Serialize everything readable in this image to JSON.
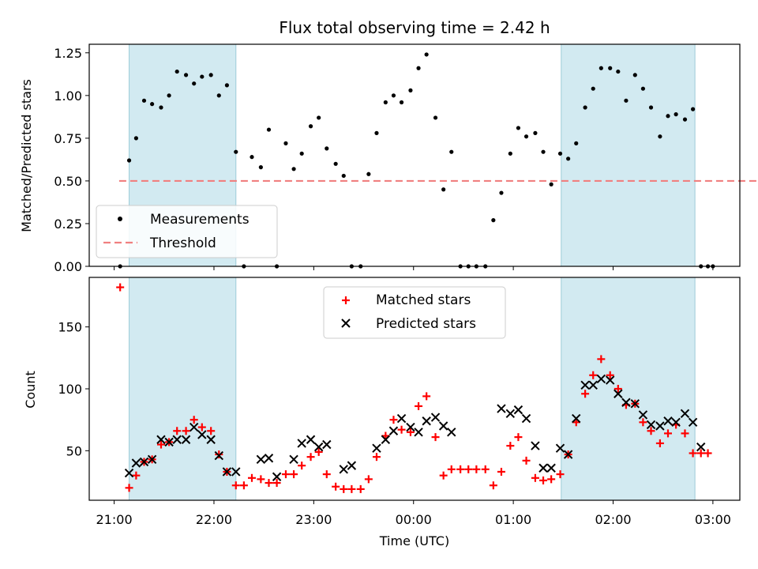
{
  "chart_data": [
    {
      "type": "scatter",
      "title": "Flux total observing time = 2.42 h",
      "xlabel": "",
      "ylabel": "Matched/Predicted stars",
      "ylim": [
        0,
        1.3
      ],
      "yticks": [
        "0.00",
        "0.25",
        "0.50",
        "0.75",
        "1.00",
        "1.25"
      ],
      "legend_position": "lower-left",
      "shaded_intervals_hours": [
        [
          21.15,
          22.22
        ],
        [
          25.48,
          26.82
        ]
      ],
      "shade_color": "#add8e6",
      "threshold": {
        "name": "Threshold",
        "value": 0.5,
        "x_range_hours": [
          21.05,
          29.0
        ],
        "color": "#f08080"
      },
      "series": [
        {
          "name": "Measurements",
          "color": "#000000",
          "x_hours": [
            21.06,
            21.15,
            21.22,
            21.3,
            21.38,
            21.47,
            21.55,
            21.63,
            21.72,
            21.8,
            21.88,
            21.97,
            22.05,
            22.13,
            22.22,
            22.3,
            22.38,
            22.47,
            22.55,
            22.63,
            22.72,
            22.8,
            22.88,
            22.97,
            23.05,
            23.13,
            23.22,
            23.3,
            23.38,
            23.47,
            23.55,
            23.63,
            23.72,
            23.8,
            23.88,
            23.97,
            24.05,
            24.13,
            24.22,
            24.3,
            24.38,
            24.47,
            24.55,
            24.63,
            24.72,
            24.8,
            24.88,
            24.97,
            25.05,
            25.13,
            25.22,
            25.3,
            25.38,
            25.47,
            25.55,
            25.63,
            25.72,
            25.8,
            25.88,
            25.97,
            26.05,
            26.13,
            26.22,
            26.3,
            26.38,
            26.47,
            26.55,
            26.63,
            26.72,
            26.8,
            26.88,
            26.95,
            27.0
          ],
          "y": [
            0,
            0.62,
            0.75,
            0.97,
            0.95,
            0.93,
            1.0,
            1.14,
            1.12,
            1.07,
            1.11,
            1.12,
            1.0,
            1.06,
            0.67,
            0,
            0.64,
            0.58,
            0.8,
            0,
            0.72,
            0.57,
            0.66,
            0.82,
            0.87,
            0.69,
            0.6,
            0.53,
            0,
            0,
            0.54,
            0.78,
            0.96,
            1.0,
            0.96,
            1.03,
            1.16,
            1.24,
            0.87,
            0.45,
            0.67,
            0,
            0,
            0,
            0,
            0.27,
            0.43,
            0.66,
            0.81,
            0.76,
            0.78,
            0.67,
            0.48,
            0.66,
            0.63,
            0.72,
            0.93,
            1.04,
            1.16,
            1.16,
            1.14,
            0.97,
            1.12,
            1.04,
            0.93,
            0.76,
            0.88,
            0.89,
            0.86,
            0.92,
            0,
            0,
            0
          ]
        }
      ]
    },
    {
      "type": "scatter",
      "title": "",
      "xlabel": "Time (UTC)",
      "ylabel": "Count",
      "ylim": [
        10,
        190
      ],
      "yticks": [
        "50",
        "100",
        "150"
      ],
      "xticks": [
        "21:00",
        "22:00",
        "23:00",
        "00:00",
        "01:00",
        "02:00",
        "03:00"
      ],
      "xtick_hours": [
        21,
        22,
        23,
        24,
        25,
        26,
        27
      ],
      "xlim_hours": [
        20.75,
        27.27
      ],
      "legend_position": "upper-center",
      "shaded_intervals_hours": [
        [
          21.15,
          22.22
        ],
        [
          25.48,
          26.82
        ]
      ],
      "shade_color": "#add8e6",
      "series": [
        {
          "name": "Matched stars",
          "marker": "plus",
          "color": "#ff0000",
          "x_hours": [
            21.06,
            21.15,
            21.22,
            21.3,
            21.38,
            21.47,
            21.55,
            21.63,
            21.72,
            21.8,
            21.88,
            21.97,
            22.05,
            22.13,
            22.22,
            22.3,
            22.38,
            22.47,
            22.55,
            22.63,
            22.72,
            22.8,
            22.88,
            22.97,
            23.05,
            23.13,
            23.22,
            23.3,
            23.38,
            23.47,
            23.55,
            23.63,
            23.72,
            23.8,
            23.88,
            23.97,
            24.05,
            24.13,
            24.22,
            24.3,
            24.38,
            24.47,
            24.55,
            24.63,
            24.72,
            24.8,
            24.88,
            24.97,
            25.05,
            25.13,
            25.22,
            25.3,
            25.38,
            25.47,
            25.55,
            25.63,
            25.72,
            25.8,
            25.88,
            25.97,
            26.05,
            26.13,
            26.22,
            26.3,
            26.38,
            26.47,
            26.55,
            26.63,
            26.72,
            26.8,
            26.88,
            26.95
          ],
          "y": [
            182,
            20,
            30,
            41,
            43,
            55,
            57,
            66,
            66,
            75,
            69,
            66,
            47,
            33,
            22,
            22,
            28,
            27,
            24,
            24,
            31,
            31,
            38,
            45,
            49,
            31,
            21,
            19,
            19,
            19,
            27,
            45,
            62,
            75,
            67,
            65,
            86,
            94,
            61,
            30,
            35,
            35,
            35,
            35,
            35,
            22,
            33,
            54,
            61,
            42,
            28,
            26,
            27,
            31,
            47,
            73,
            96,
            111,
            124,
            111,
            100,
            87,
            88,
            73,
            66,
            56,
            64,
            71,
            64,
            48,
            48,
            48
          ]
        },
        {
          "name": "Predicted stars",
          "marker": "x",
          "color": "#000000",
          "x_hours": [
            21.15,
            21.22,
            21.3,
            21.38,
            21.47,
            21.55,
            21.63,
            21.72,
            21.8,
            21.88,
            21.97,
            22.05,
            22.13,
            22.22,
            22.47,
            22.55,
            22.63,
            22.8,
            22.88,
            22.97,
            23.05,
            23.13,
            23.3,
            23.38,
            23.63,
            23.72,
            23.8,
            23.88,
            23.97,
            24.05,
            24.13,
            24.22,
            24.3,
            24.38,
            24.88,
            24.97,
            25.05,
            25.13,
            25.22,
            25.3,
            25.38,
            25.47,
            25.55,
            25.63,
            25.72,
            25.8,
            25.88,
            25.97,
            26.05,
            26.13,
            26.22,
            26.3,
            26.38,
            26.47,
            26.55,
            26.63,
            26.72,
            26.8,
            26.88
          ],
          "y": [
            32,
            40,
            41,
            43,
            59,
            57,
            59,
            59,
            69,
            63,
            59,
            46,
            33,
            33,
            43,
            44,
            29,
            43,
            56,
            59,
            53,
            55,
            35,
            38,
            52,
            59,
            66,
            76,
            69,
            65,
            74,
            77,
            70,
            65,
            84,
            80,
            83,
            76,
            54,
            36,
            36,
            52,
            47,
            76,
            103,
            103,
            108,
            107,
            96,
            89,
            88,
            79,
            71,
            70,
            74,
            73,
            80,
            73,
            53
          ]
        }
      ]
    }
  ]
}
